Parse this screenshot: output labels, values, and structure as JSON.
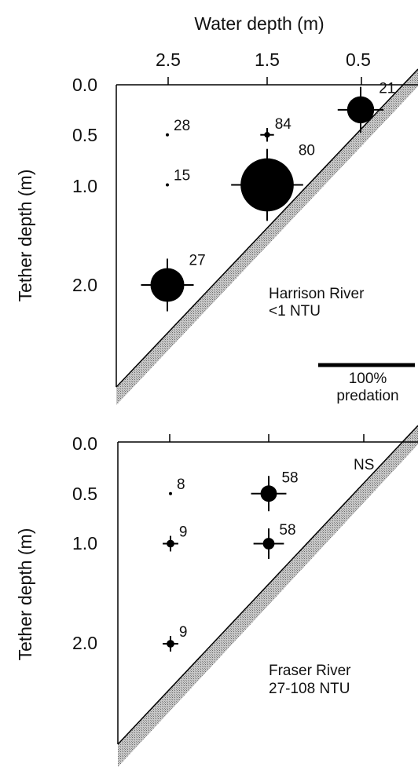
{
  "chart_data": [
    {
      "type": "scatter",
      "title": "Water depth (m)",
      "xlabel": "Water depth (m)",
      "ylabel": "Tether depth (m)",
      "x_ticks": [
        "2.5",
        "1.5",
        "0.5"
      ],
      "y_ticks": [
        "0.0",
        "0.5",
        "1.0",
        "2.0"
      ],
      "ylim": [
        0,
        3.0
      ],
      "annotation": "Harrison River\n<1 NTU",
      "annotation_lines": [
        "Harrison River",
        "<1 NTU"
      ],
      "scale_bar_label": "100%\npredation",
      "scale_bar_lines": [
        "100%",
        "predation"
      ],
      "points": [
        {
          "water_depth": 2.5,
          "tether_depth": 0.5,
          "n": "28",
          "predation": 0.03
        },
        {
          "water_depth": 2.5,
          "tether_depth": 1.0,
          "n": "15",
          "predation": 0.02
        },
        {
          "water_depth": 2.5,
          "tether_depth": 2.0,
          "n": "27",
          "predation": 0.35
        },
        {
          "water_depth": 1.5,
          "tether_depth": 0.5,
          "n": "84",
          "predation": 0.06
        },
        {
          "water_depth": 1.5,
          "tether_depth": 1.0,
          "n": "80",
          "predation": 0.55
        },
        {
          "water_depth": 0.5,
          "tether_depth": 0.25,
          "n": "21",
          "predation": 0.28
        }
      ]
    },
    {
      "type": "scatter",
      "xlabel": "",
      "ylabel": "Tether depth (m)",
      "y_ticks": [
        "0.0",
        "0.5",
        "1.0",
        "2.0"
      ],
      "ylim": [
        0,
        3.0
      ],
      "annotation": "Fraser River\n27-108 NTU",
      "annotation_lines": [
        "Fraser River",
        "27-108 NTU"
      ],
      "significance": "NS",
      "points": [
        {
          "water_depth": 2.5,
          "tether_depth": 0.5,
          "n": "8",
          "predation": 0.02
        },
        {
          "water_depth": 2.5,
          "tether_depth": 1.0,
          "n": "9",
          "predation": 0.08
        },
        {
          "water_depth": 2.5,
          "tether_depth": 2.0,
          "n": "9",
          "predation": 0.08
        },
        {
          "water_depth": 1.5,
          "tether_depth": 0.5,
          "n": "58",
          "predation": 0.17
        },
        {
          "water_depth": 1.5,
          "tether_depth": 1.0,
          "n": "58",
          "predation": 0.12
        }
      ]
    }
  ]
}
